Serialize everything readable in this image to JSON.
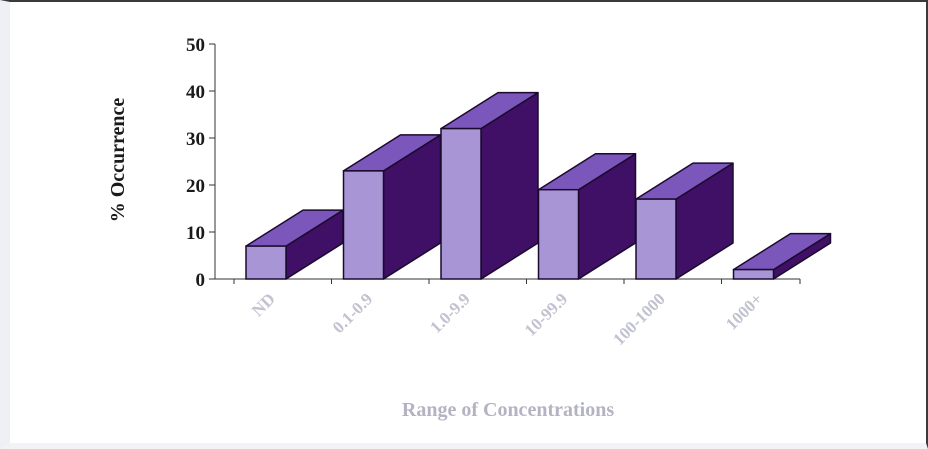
{
  "chart_data": {
    "type": "bar",
    "categories": [
      "ND",
      "0.1-0.9",
      "1.0-9.9",
      "10-99.9",
      "100-1000",
      "1000+"
    ],
    "values": [
      7,
      23,
      32,
      19,
      17,
      2
    ],
    "title": "",
    "xlabel": "Range of Concentrations",
    "ylabel": "% Occurrence",
    "ylim": [
      0,
      50
    ],
    "yticks": [
      0,
      10,
      20,
      30,
      40,
      50
    ],
    "grid": false,
    "legend": "none",
    "three_d": true,
    "colors": {
      "front": "#a895d6",
      "top": "#7b56bb",
      "side": "#3f1066",
      "edge": "#1b0a2e",
      "axis": "#333333"
    }
  }
}
